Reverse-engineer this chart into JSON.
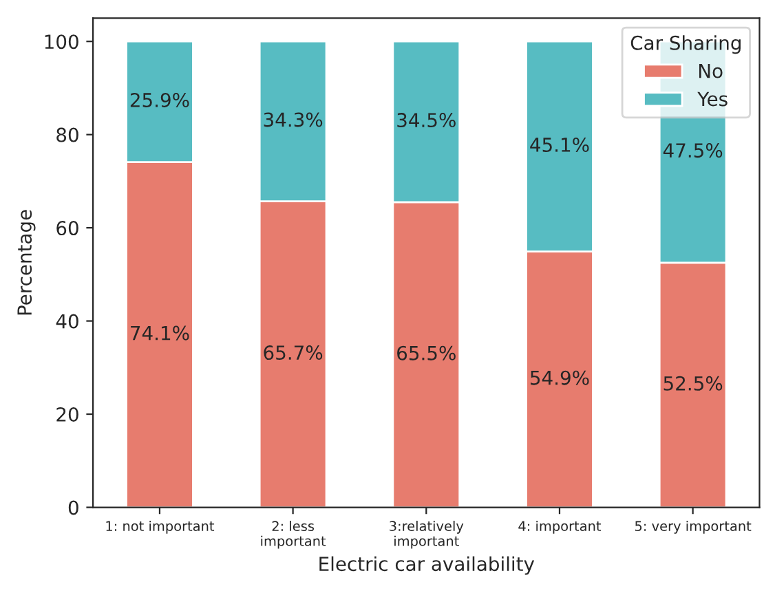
{
  "chart_data": {
    "type": "bar",
    "stacked": true,
    "xlabel": "Electric car availability",
    "ylabel": "Percentage",
    "legend_title": "Car Sharing",
    "legend": "top right",
    "categories": [
      "1: not important",
      "2: less\nimportant",
      "3:relatively\nimportant",
      "4: important",
      "5: very important"
    ],
    "series": [
      {
        "name": "No",
        "color": "#e77c6e",
        "values": [
          74.1,
          65.7,
          65.5,
          54.9,
          52.5
        ],
        "value_labels": [
          "74.1%",
          "65.7%",
          "65.5%",
          "54.9%",
          "52.5%"
        ]
      },
      {
        "name": "Yes",
        "color": "#57bcc2",
        "values": [
          25.9,
          34.3,
          34.5,
          45.1,
          47.5
        ],
        "value_labels": [
          "25.9%",
          "34.3%",
          "34.5%",
          "45.1%",
          "47.5%"
        ]
      }
    ],
    "ylim": [
      0,
      105
    ],
    "yticks": [
      0,
      20,
      40,
      60,
      80,
      100
    ],
    "grid": false
  }
}
